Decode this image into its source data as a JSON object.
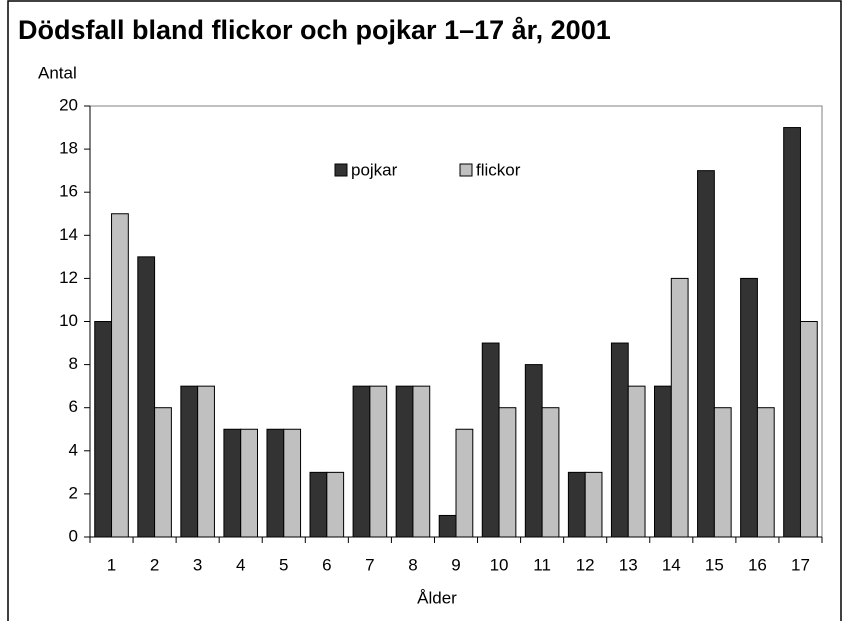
{
  "chart_data": {
    "type": "bar",
    "title": "Dödsfall bland flickor och pojkar 1–17 år, 2001",
    "y_label": "Antal",
    "x_label": "Ålder",
    "categories": [
      "1",
      "2",
      "3",
      "4",
      "5",
      "6",
      "7",
      "8",
      "9",
      "10",
      "11",
      "12",
      "13",
      "14",
      "15",
      "16",
      "17"
    ],
    "series": [
      {
        "name": "pojkar",
        "color": "#333333",
        "values": [
          10,
          13,
          7,
          5,
          5,
          3,
          7,
          7,
          1,
          9,
          8,
          3,
          9,
          7,
          17,
          12,
          19
        ]
      },
      {
        "name": "flickor",
        "color": "#c0c0c0",
        "values": [
          15,
          6,
          7,
          5,
          5,
          3,
          7,
          7,
          5,
          6,
          6,
          3,
          7,
          12,
          6,
          6,
          10
        ]
      }
    ],
    "ylim": [
      0,
      20
    ],
    "yticks": [
      0,
      2,
      4,
      6,
      8,
      10,
      12,
      14,
      16,
      18,
      20
    ],
    "grid": false,
    "legend": "top"
  }
}
